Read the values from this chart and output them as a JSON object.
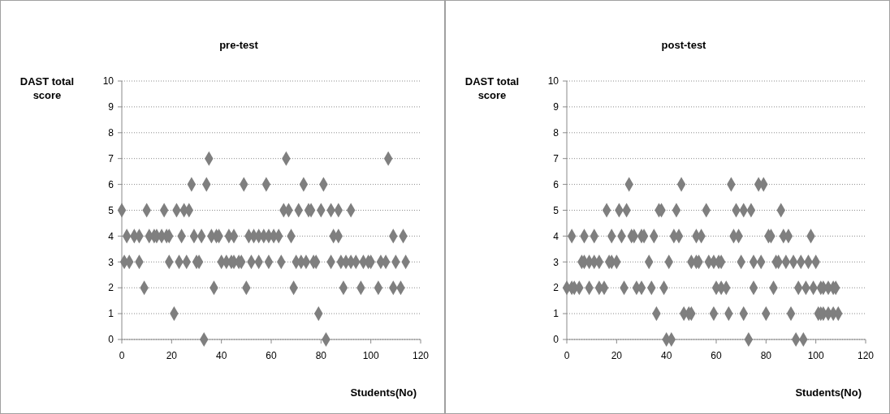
{
  "chart_data": [
    {
      "type": "scatter",
      "title": "pre-test",
      "xlabel": "Students(No)",
      "ylabel": "DAST total score",
      "color": "#7f7f7f",
      "marker": "diamond",
      "grid": "y",
      "xlim": [
        0,
        120
      ],
      "xticks": [
        0,
        20,
        40,
        60,
        80,
        100,
        120
      ],
      "ylim": [
        0,
        10
      ],
      "yticks": [
        0,
        1,
        2,
        3,
        4,
        5,
        6,
        7,
        8,
        9,
        10
      ],
      "x": [
        35,
        66,
        107,
        28,
        34,
        49,
        58,
        73,
        81,
        0,
        10,
        17,
        22,
        25,
        27,
        65,
        67,
        71,
        75,
        76,
        80,
        84,
        87,
        92,
        2,
        5,
        7,
        11,
        13,
        14,
        16,
        18,
        19,
        24,
        29,
        32,
        36,
        38,
        39,
        43,
        45,
        51,
        53,
        55,
        57,
        59,
        61,
        63,
        68,
        85,
        87,
        109,
        113,
        1,
        3,
        7,
        19,
        23,
        26,
        30,
        31,
        40,
        42,
        44,
        45,
        47,
        48,
        52,
        55,
        59,
        64,
        70,
        72,
        74,
        77,
        78,
        84,
        88,
        90,
        92,
        94,
        97,
        99,
        100,
        104,
        106,
        110,
        114,
        9,
        37,
        50,
        69,
        89,
        96,
        103,
        109,
        112,
        21,
        79,
        33,
        82
      ],
      "values": [
        7,
        7,
        7,
        6,
        6,
        6,
        6,
        6,
        6,
        5,
        5,
        5,
        5,
        5,
        5,
        5,
        5,
        5,
        5,
        5,
        5,
        5,
        5,
        5,
        4,
        4,
        4,
        4,
        4,
        4,
        4,
        4,
        4,
        4,
        4,
        4,
        4,
        4,
        4,
        4,
        4,
        4,
        4,
        4,
        4,
        4,
        4,
        4,
        4,
        4,
        4,
        4,
        4,
        3,
        3,
        3,
        3,
        3,
        3,
        3,
        3,
        3,
        3,
        3,
        3,
        3,
        3,
        3,
        3,
        3,
        3,
        3,
        3,
        3,
        3,
        3,
        3,
        3,
        3,
        3,
        3,
        3,
        3,
        3,
        3,
        3,
        3,
        3,
        2,
        2,
        2,
        2,
        2,
        2,
        2,
        2,
        2,
        1,
        1,
        0,
        0
      ]
    },
    {
      "type": "scatter",
      "title": "post-test",
      "xlabel": "Students(No)",
      "ylabel": "DAST total score",
      "color": "#7f7f7f",
      "marker": "diamond",
      "grid": "y",
      "xlim": [
        0,
        120
      ],
      "xticks": [
        0,
        20,
        40,
        60,
        80,
        100,
        120
      ],
      "ylim": [
        0,
        10
      ],
      "yticks": [
        0,
        1,
        2,
        3,
        4,
        5,
        6,
        7,
        8,
        9,
        10
      ],
      "x": [
        25,
        46,
        66,
        77,
        79,
        16,
        21,
        24,
        37,
        38,
        44,
        56,
        68,
        71,
        74,
        86,
        2,
        7,
        11,
        18,
        22,
        26,
        27,
        30,
        31,
        35,
        43,
        45,
        52,
        54,
        67,
        69,
        81,
        82,
        87,
        89,
        98,
        6,
        7,
        9,
        11,
        13,
        17,
        18,
        20,
        33,
        41,
        50,
        52,
        53,
        57,
        59,
        61,
        62,
        70,
        75,
        78,
        84,
        85,
        88,
        91,
        94,
        97,
        100,
        0,
        2,
        3,
        5,
        9,
        13,
        15,
        23,
        28,
        30,
        34,
        39,
        60,
        62,
        64,
        75,
        83,
        93,
        96,
        99,
        102,
        103,
        105,
        107,
        108,
        36,
        47,
        49,
        50,
        59,
        65,
        71,
        80,
        90,
        101,
        102,
        103,
        105,
        107,
        109,
        40,
        42,
        73,
        92,
        95
      ],
      "values": [
        6,
        6,
        6,
        6,
        6,
        5,
        5,
        5,
        5,
        5,
        5,
        5,
        5,
        5,
        5,
        5,
        4,
        4,
        4,
        4,
        4,
        4,
        4,
        4,
        4,
        4,
        4,
        4,
        4,
        4,
        4,
        4,
        4,
        4,
        4,
        4,
        4,
        3,
        3,
        3,
        3,
        3,
        3,
        3,
        3,
        3,
        3,
        3,
        3,
        3,
        3,
        3,
        3,
        3,
        3,
        3,
        3,
        3,
        3,
        3,
        3,
        3,
        3,
        3,
        2,
        2,
        2,
        2,
        2,
        2,
        2,
        2,
        2,
        2,
        2,
        2,
        2,
        2,
        2,
        2,
        2,
        2,
        2,
        2,
        2,
        2,
        2,
        2,
        2,
        1,
        1,
        1,
        1,
        1,
        1,
        1,
        1,
        1,
        1,
        1,
        1,
        1,
        1,
        1,
        0,
        0,
        0,
        0,
        0
      ]
    }
  ]
}
